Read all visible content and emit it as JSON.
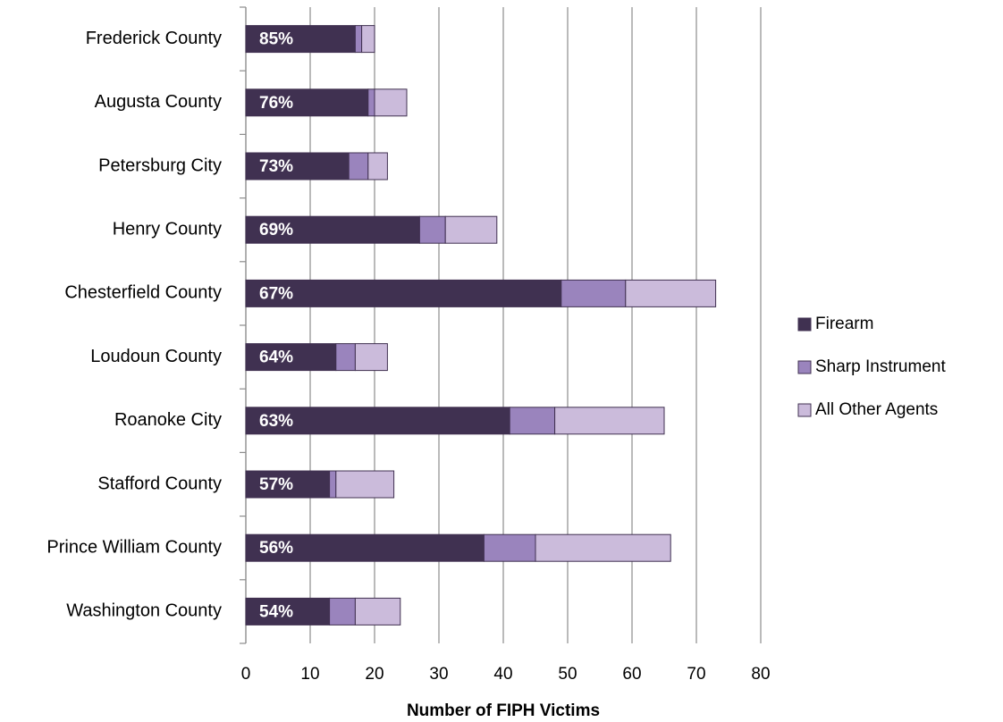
{
  "chart_data": {
    "type": "stacked-bar",
    "orientation": "horizontal",
    "x_label": "Number of FIPH Victims",
    "categories": [
      "Frederick County",
      "Augusta County",
      "Petersburg City",
      "Henry County",
      "Chesterfield County",
      "Loudoun County",
      "Roanoke City",
      "Stafford County",
      "Prince William County",
      "Washington County"
    ],
    "series": [
      {
        "name": "Firearm",
        "color": "#403151",
        "values": [
          17,
          19,
          16,
          27,
          49,
          14,
          41,
          13,
          37,
          13
        ]
      },
      {
        "name": "Sharp Instrument",
        "color": "#9a84bd",
        "values": [
          1,
          1,
          3,
          4,
          10,
          3,
          7,
          1,
          8,
          4
        ]
      },
      {
        "name": "All Other Agents",
        "color": "#cbbbdb",
        "values": [
          2,
          5,
          3,
          8,
          14,
          5,
          17,
          9,
          21,
          7
        ]
      }
    ],
    "annotations": [
      "85%",
      "76%",
      "73%",
      "69%",
      "67%",
      "64%",
      "63%",
      "57%",
      "56%",
      "54%"
    ],
    "xlim": [
      0,
      80
    ],
    "xticks": [
      0,
      10,
      20,
      30,
      40,
      50,
      60,
      70,
      80
    ],
    "grid": true,
    "legend": "right"
  }
}
